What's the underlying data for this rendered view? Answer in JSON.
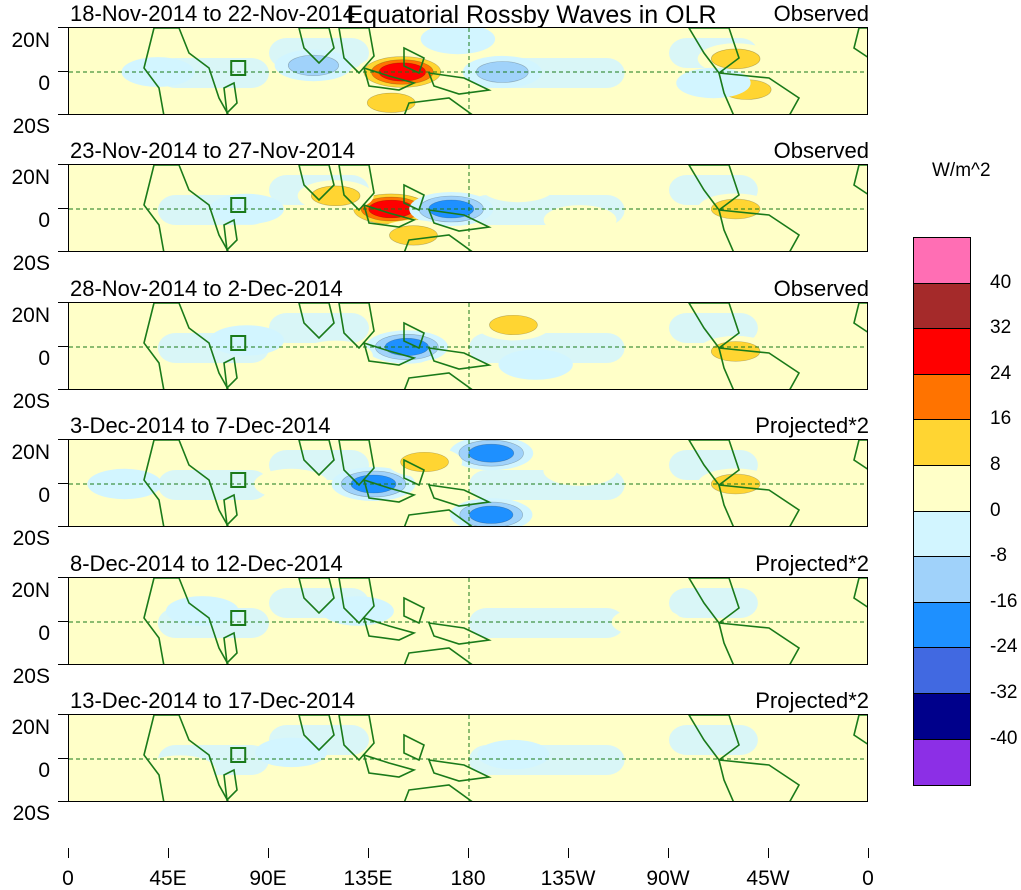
{
  "title": "Equatorial Rossby Waves in OLR",
  "y_labels": [
    "20N",
    "0",
    "20S"
  ],
  "x_labels": [
    "0",
    "45E",
    "90E",
    "135E",
    "180",
    "135W",
    "90W",
    "45W",
    "0"
  ],
  "colorbar": {
    "units": "W/m^2",
    "labels": [
      "40",
      "32",
      "24",
      "16",
      "8",
      "0",
      "-8",
      "-16",
      "-24",
      "-32",
      "-40"
    ],
    "colors": [
      "#ff6eb4",
      "#a52a2a",
      "#ff0000",
      "#ff7300",
      "#ffd532",
      "#ffffc8",
      "#d2f5ff",
      "#a0d2fa",
      "#1e90ff",
      "#4169e1",
      "#00008b",
      "#8c2fe6"
    ]
  },
  "panels": [
    {
      "period": "18-Nov-2014 to 22-Nov-2014",
      "type": "Observed"
    },
    {
      "period": "23-Nov-2014 to 27-Nov-2014",
      "type": "Observed"
    },
    {
      "period": "28-Nov-2014 to 2-Dec-2014",
      "type": "Observed"
    },
    {
      "period": "3-Dec-2014 to 7-Dec-2014",
      "type": "Projected*2"
    },
    {
      "period": "8-Dec-2014 to 12-Dec-2014",
      "type": "Projected*2"
    },
    {
      "period": "13-Dec-2014 to 17-Dec-2014",
      "type": "Projected*2"
    }
  ],
  "anomalies": [
    [
      {
        "lon": 150,
        "lat": 0,
        "value": 30
      },
      {
        "lon": 110,
        "lat": 3,
        "value": -12
      },
      {
        "lon": 195,
        "lat": 0,
        "value": -14
      },
      {
        "lon": 300,
        "lat": 6,
        "value": 10
      },
      {
        "lon": 305,
        "lat": -8,
        "value": 10
      },
      {
        "lon": 290,
        "lat": -5,
        "value": -8
      },
      {
        "lon": 40,
        "lat": 0,
        "value": -6
      },
      {
        "lon": 145,
        "lat": -14,
        "value": 9
      },
      {
        "lon": 175,
        "lat": 15,
        "value": -8
      }
    ],
    [
      {
        "lon": 145,
        "lat": 0,
        "value": 28
      },
      {
        "lon": 172,
        "lat": 0,
        "value": -20
      },
      {
        "lon": 120,
        "lat": 6,
        "value": 10
      },
      {
        "lon": 155,
        "lat": -12,
        "value": 9
      },
      {
        "lon": 202,
        "lat": 10,
        "value": 8
      },
      {
        "lon": 300,
        "lat": 0,
        "value": 10
      },
      {
        "lon": 80,
        "lat": 0,
        "value": -8
      },
      {
        "lon": 230,
        "lat": -5,
        "value": 6
      }
    ],
    [
      {
        "lon": 152,
        "lat": 0,
        "value": -18
      },
      {
        "lon": 120,
        "lat": -4,
        "value": 8
      },
      {
        "lon": 200,
        "lat": 10,
        "value": 9
      },
      {
        "lon": 300,
        "lat": -2,
        "value": 10
      },
      {
        "lon": 80,
        "lat": 3,
        "value": -8
      },
      {
        "lon": 210,
        "lat": -8,
        "value": -8
      },
      {
        "lon": 170,
        "lat": -12,
        "value": 7
      }
    ],
    [
      {
        "lon": 137,
        "lat": 0,
        "value": -20
      },
      {
        "lon": 190,
        "lat": 14,
        "value": -20
      },
      {
        "lon": 190,
        "lat": -14,
        "value": -18
      },
      {
        "lon": 160,
        "lat": 10,
        "value": 9
      },
      {
        "lon": 100,
        "lat": 0,
        "value": 8
      },
      {
        "lon": 300,
        "lat": 0,
        "value": 10
      },
      {
        "lon": 25,
        "lat": 0,
        "value": -8
      },
      {
        "lon": 230,
        "lat": 6,
        "value": 7
      }
    ],
    [
      {
        "lon": 60,
        "lat": 5,
        "value": -6
      },
      {
        "lon": 130,
        "lat": 5,
        "value": -5
      },
      {
        "lon": 260,
        "lat": 0,
        "value": 3
      },
      {
        "lon": 20,
        "lat": 0,
        "value": 5
      }
    ],
    [
      {
        "lon": 100,
        "lat": 3,
        "value": -5
      },
      {
        "lon": 200,
        "lat": 2,
        "value": -5
      },
      {
        "lon": 50,
        "lat": -5,
        "value": 4
      }
    ]
  ]
}
